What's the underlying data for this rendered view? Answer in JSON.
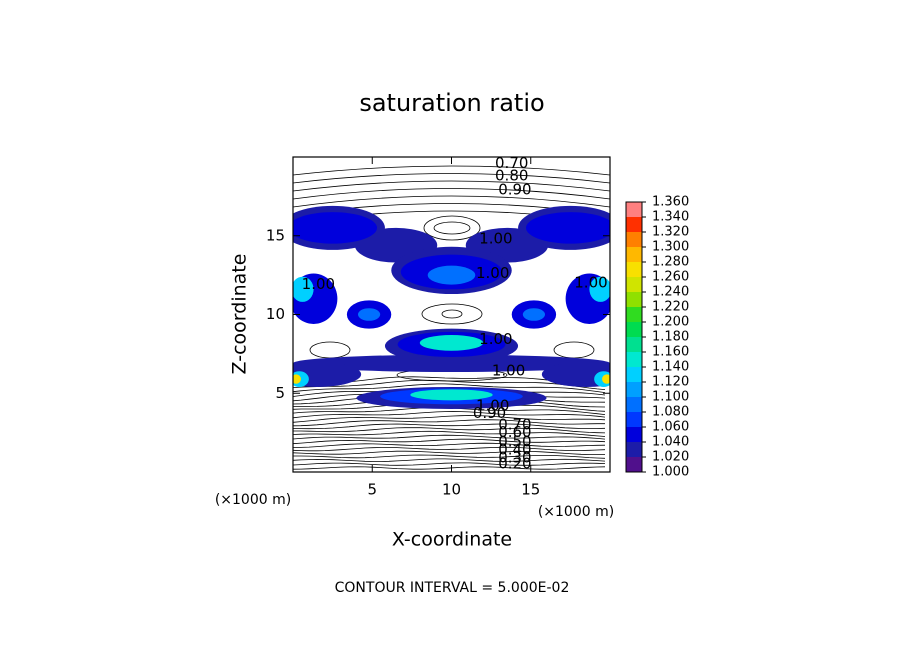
{
  "chart_data": {
    "type": "contour",
    "title": "saturation ratio",
    "xlabel": "X-coordinate",
    "ylabel": "Z-coordinate",
    "x_unit": "(×1000 m)",
    "y_unit": "(×1000 m)",
    "footer": "CONTOUR INTERVAL = 5.000E-02",
    "xlim": [
      0,
      20
    ],
    "ylim": [
      0,
      20
    ],
    "xticks": [
      5,
      10,
      15
    ],
    "yticks": [
      5,
      10,
      15
    ],
    "colorbar_ticks": [
      {
        "value": 1.0,
        "label": "1.000"
      },
      {
        "value": 1.02,
        "label": "1.020"
      },
      {
        "value": 1.04,
        "label": "1.040"
      },
      {
        "value": 1.06,
        "label": "1.060"
      },
      {
        "value": 1.08,
        "label": "1.080"
      },
      {
        "value": 1.1,
        "label": "1.100"
      },
      {
        "value": 1.12,
        "label": "1.120"
      },
      {
        "value": 1.14,
        "label": "1.140"
      },
      {
        "value": 1.16,
        "label": "1.160"
      },
      {
        "value": 1.18,
        "label": "1.180"
      },
      {
        "value": 1.2,
        "label": "1.200"
      },
      {
        "value": 1.22,
        "label": "1.220"
      },
      {
        "value": 1.24,
        "label": "1.240"
      },
      {
        "value": 1.26,
        "label": "1.260"
      },
      {
        "value": 1.28,
        "label": "1.280"
      },
      {
        "value": 1.3,
        "label": "1.300"
      },
      {
        "value": 1.32,
        "label": "1.320"
      },
      {
        "value": 1.34,
        "label": "1.340"
      },
      {
        "value": 1.36,
        "label": "1.360"
      }
    ],
    "colorbar_colors": [
      "#50108c",
      "#1c1ca8",
      "#0000dc",
      "#0038ff",
      "#0070ff",
      "#00a0ff",
      "#00d0ff",
      "#00e8d0",
      "#00e090",
      "#00dc50",
      "#30dc20",
      "#90e000",
      "#d0e400",
      "#f8e000",
      "#ffb800",
      "#ff8000",
      "#ff3000",
      "#ff8080"
    ],
    "regions": [
      {
        "level": 1.02,
        "x": 2.5,
        "z": 15.5,
        "rx": 3.3,
        "rz": 1.4
      },
      {
        "level": 1.02,
        "x": 17.5,
        "z": 15.5,
        "rx": 3.3,
        "rz": 1.4
      },
      {
        "level": 1.02,
        "x": 6.5,
        "z": 14.4,
        "rx": 2.6,
        "rz": 1.1
      },
      {
        "level": 1.02,
        "x": 13.5,
        "z": 14.4,
        "rx": 2.6,
        "rz": 1.1
      },
      {
        "level": 1.02,
        "x": 10,
        "z": 12.8,
        "rx": 3.8,
        "rz": 1.5
      },
      {
        "level": 1.04,
        "x": 2.5,
        "z": 15.5,
        "rx": 2.8,
        "rz": 1.0
      },
      {
        "level": 1.04,
        "x": 17.5,
        "z": 15.5,
        "rx": 2.8,
        "rz": 1.0
      },
      {
        "level": 1.04,
        "x": 10,
        "z": 12.7,
        "rx": 3.2,
        "rz": 1.1
      },
      {
        "level": 1.08,
        "x": 10,
        "z": 12.5,
        "rx": 1.5,
        "rz": 0.6
      },
      {
        "level": 1.04,
        "x": 1.3,
        "z": 11.0,
        "rx": 1.5,
        "rz": 1.6
      },
      {
        "level": 1.04,
        "x": 18.7,
        "z": 11.0,
        "rx": 1.5,
        "rz": 1.6
      },
      {
        "level": 1.12,
        "x": 0.6,
        "z": 11.6,
        "rx": 0.7,
        "rz": 0.8
      },
      {
        "level": 1.12,
        "x": 19.4,
        "z": 11.6,
        "rx": 0.7,
        "rz": 0.8
      },
      {
        "level": 1.04,
        "x": 4.8,
        "z": 10.0,
        "rx": 1.4,
        "rz": 0.9
      },
      {
        "level": 1.04,
        "x": 15.2,
        "z": 10.0,
        "rx": 1.4,
        "rz": 0.9
      },
      {
        "level": 1.08,
        "x": 4.8,
        "z": 10.0,
        "rx": 0.7,
        "rz": 0.4
      },
      {
        "level": 1.08,
        "x": 15.2,
        "z": 10.0,
        "rx": 0.7,
        "rz": 0.4
      },
      {
        "level": 1.02,
        "x": 10,
        "z": 8.0,
        "rx": 4.2,
        "rz": 1.1
      },
      {
        "level": 1.02,
        "x": 10,
        "z": 6.9,
        "rx": 10,
        "rz": 0.55
      },
      {
        "level": 1.04,
        "x": 10,
        "z": 8.1,
        "rx": 3.4,
        "rz": 0.8
      },
      {
        "level": 1.14,
        "x": 10,
        "z": 8.2,
        "rx": 2.0,
        "rz": 0.5
      },
      {
        "level": 1.02,
        "x": 1.5,
        "z": 6.2,
        "rx": 2.8,
        "rz": 0.8
      },
      {
        "level": 1.02,
        "x": 18.5,
        "z": 6.2,
        "rx": 2.8,
        "rz": 0.8
      },
      {
        "level": 1.12,
        "x": 0.4,
        "z": 5.9,
        "rx": 0.6,
        "rz": 0.5
      },
      {
        "level": 1.12,
        "x": 19.6,
        "z": 5.9,
        "rx": 0.6,
        "rz": 0.5
      },
      {
        "level": 1.26,
        "x": 0.2,
        "z": 5.9,
        "rx": 0.3,
        "rz": 0.3
      },
      {
        "level": 1.26,
        "x": 19.8,
        "z": 5.9,
        "rx": 0.3,
        "rz": 0.3
      },
      {
        "level": 1.02,
        "x": 10,
        "z": 4.7,
        "rx": 6.0,
        "rz": 0.7
      },
      {
        "level": 1.06,
        "x": 10,
        "z": 4.8,
        "rx": 4.5,
        "rz": 0.5
      },
      {
        "level": 1.14,
        "x": 10,
        "z": 4.9,
        "rx": 2.6,
        "rz": 0.35
      }
    ],
    "contour_labels": [
      {
        "value": 0.7,
        "label": "0.70",
        "x": 13.8,
        "z": 19.6
      },
      {
        "value": 0.8,
        "label": "0.80",
        "x": 13.8,
        "z": 18.8
      },
      {
        "value": 0.9,
        "label": "0.90",
        "x": 14.0,
        "z": 17.9
      },
      {
        "value": 1.0,
        "label": "1.00",
        "x": 12.8,
        "z": 14.8
      },
      {
        "value": 1.0,
        "label": "1.00",
        "x": 12.6,
        "z": 12.6
      },
      {
        "value": 1.0,
        "label": "1.00",
        "x": 1.6,
        "z": 11.9
      },
      {
        "value": 1.0,
        "label": "1.00",
        "x": 18.8,
        "z": 12.0
      },
      {
        "value": 1.0,
        "label": "1.00",
        "x": 12.8,
        "z": 8.4
      },
      {
        "value": 1.0,
        "label": "1.00",
        "x": 13.6,
        "z": 6.4
      },
      {
        "value": 1.0,
        "label": "1.00",
        "x": 12.6,
        "z": 4.2
      },
      {
        "value": 0.9,
        "label": "0.90",
        "x": 12.4,
        "z": 3.7
      },
      {
        "value": 0.7,
        "label": "0.70",
        "x": 14.0,
        "z": 3.0
      },
      {
        "value": 0.6,
        "label": "0.60",
        "x": 14.0,
        "z": 2.5
      },
      {
        "value": 0.5,
        "label": "0.50",
        "x": 14.0,
        "z": 1.9
      },
      {
        "value": 0.4,
        "label": "0.40",
        "x": 14.0,
        "z": 1.4
      },
      {
        "value": 0.3,
        "label": "0.30",
        "x": 14.0,
        "z": 0.9
      },
      {
        "value": 0.2,
        "label": "0.20",
        "x": 14.0,
        "z": 0.5
      }
    ]
  }
}
